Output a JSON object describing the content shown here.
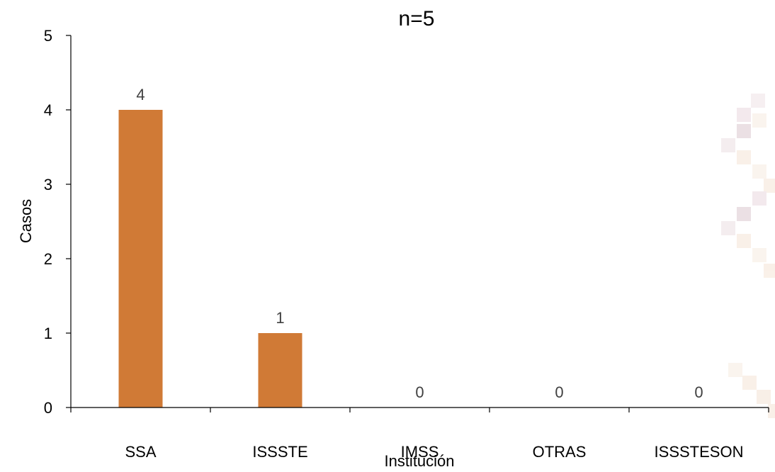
{
  "chart_data": {
    "type": "bar",
    "title": "n=5",
    "xlabel": "Institución",
    "ylabel": "Casos",
    "categories": [
      "SSA",
      "ISSSTE",
      "IMSS",
      "OTRAS",
      "ISSSTESON"
    ],
    "values": [
      4,
      1,
      0,
      0,
      0
    ],
    "data_labels": [
      "4",
      "1",
      "0",
      "0",
      "0"
    ],
    "ylim": [
      0,
      5
    ],
    "yticks": [
      0,
      1,
      2,
      3,
      4,
      5
    ],
    "grid": false,
    "legend": "none",
    "bar_color": "#D07A36"
  }
}
